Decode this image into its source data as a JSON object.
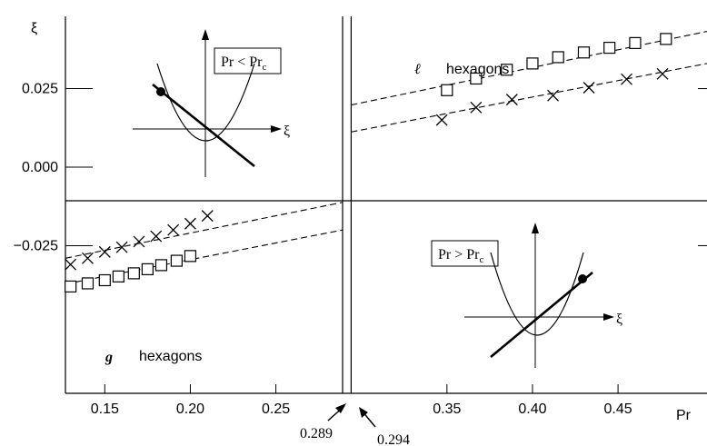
{
  "chart_data": {
    "type": "scatter",
    "xlabel": "Pr",
    "ylabel": "ξ",
    "xlim": [
      0.127,
      0.502
    ],
    "ylim": [
      -0.072,
      0.048
    ],
    "x_ticks": [
      {
        "v": 0.15,
        "label": "0.15"
      },
      {
        "v": 0.2,
        "label": "0.20"
      },
      {
        "v": 0.25,
        "label": "0.25"
      },
      {
        "v": 0.35,
        "label": "0.35"
      },
      {
        "v": 0.4,
        "label": "0.40"
      },
      {
        "v": 0.45,
        "label": "0.45"
      }
    ],
    "y_ticks": [
      {
        "v": 0.025,
        "label": "0.025"
      },
      {
        "v": 0.0,
        "label": "0.000"
      },
      {
        "v": -0.025,
        "label": "−0.025"
      }
    ],
    "critical_lines": [
      {
        "x": 0.289,
        "label": "0.289"
      },
      {
        "x": 0.294,
        "label": "0.294"
      }
    ],
    "region_labels": {
      "upper": {
        "symbol": "ℓ",
        "text": "hexagons"
      },
      "lower": {
        "symbol": "g",
        "text": "hexagons"
      }
    },
    "series": [
      {
        "marker": "square",
        "x": [
          0.35,
          0.367,
          0.385,
          0.4,
          0.415,
          0.43,
          0.445,
          0.46,
          0.478
        ],
        "y": [
          0.0245,
          0.0282,
          0.031,
          0.033,
          0.035,
          0.0365,
          0.038,
          0.0395,
          0.0408
        ]
      },
      {
        "marker": "cross",
        "x": [
          0.347,
          0.367,
          0.388,
          0.412,
          0.433,
          0.455,
          0.476
        ],
        "y": [
          0.015,
          0.019,
          0.0215,
          0.0228,
          0.0253,
          0.028,
          0.0297
        ]
      },
      {
        "marker": "cross",
        "x": [
          0.13,
          0.14,
          0.15,
          0.16,
          0.17,
          0.18,
          0.19,
          0.2,
          0.21
        ],
        "y": [
          -0.031,
          -0.029,
          -0.027,
          -0.0255,
          -0.0237,
          -0.022,
          -0.02,
          -0.018,
          -0.0155
        ]
      },
      {
        "marker": "square",
        "x": [
          0.13,
          0.14,
          0.15,
          0.158,
          0.167,
          0.175,
          0.183,
          0.192,
          0.2
        ],
        "y": [
          -0.038,
          -0.037,
          -0.036,
          -0.0348,
          -0.0338,
          -0.0325,
          -0.0312,
          -0.0298,
          -0.0283
        ]
      }
    ],
    "fit_lines": [
      {
        "x": [
          0.294,
          0.502
        ],
        "y": [
          0.0198,
          0.0432
        ]
      },
      {
        "x": [
          0.294,
          0.502
        ],
        "y": [
          0.0112,
          0.033
        ]
      },
      {
        "x": [
          0.127,
          0.289
        ],
        "y": [
          -0.029,
          -0.0112
        ]
      },
      {
        "x": [
          0.127,
          0.289
        ],
        "y": [
          -0.0372,
          -0.02
        ]
      }
    ],
    "insets": [
      {
        "label": "Pr < Pr",
        "label_sub": "c",
        "axis_label": "ξ"
      },
      {
        "label": "Pr > Pr",
        "label_sub": "c",
        "axis_label": "ξ"
      }
    ]
  }
}
